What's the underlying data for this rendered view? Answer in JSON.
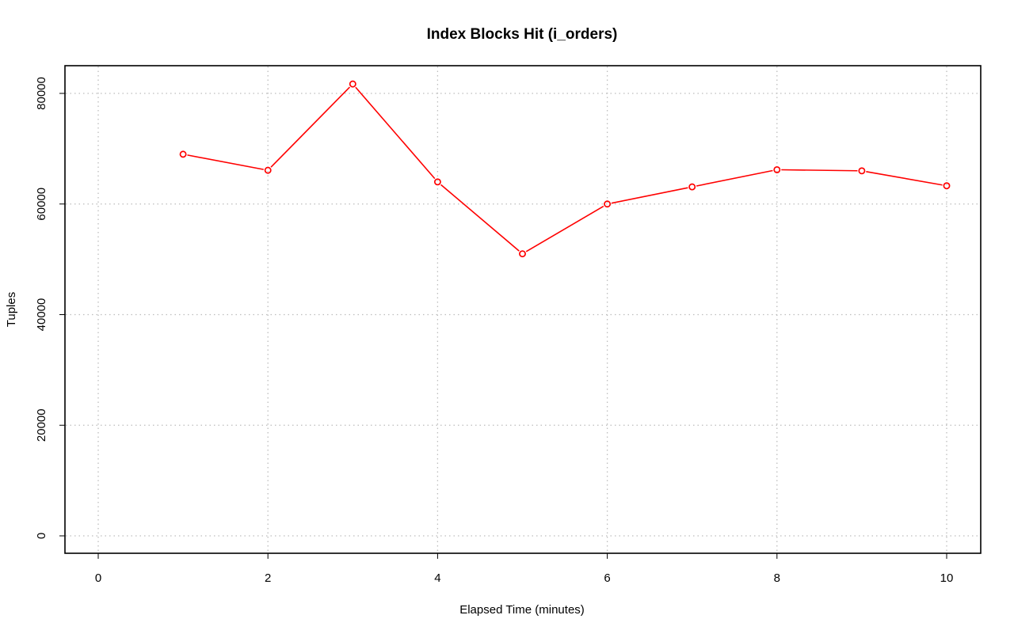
{
  "chart_data": {
    "type": "line",
    "title": "Index Blocks Hit (i_orders)",
    "xlabel": "Elapsed Time (minutes)",
    "ylabel": "Tuples",
    "xlim": [
      0,
      10
    ],
    "ylim": [
      0,
      80000
    ],
    "x_ticks": [
      0,
      2,
      4,
      6,
      8,
      10
    ],
    "y_ticks": [
      0,
      20000,
      40000,
      60000,
      80000
    ],
    "grid": true,
    "legend": "none",
    "series": [
      {
        "color": "#ff0000",
        "marker": "open-circle",
        "x": [
          1,
          2,
          3,
          4,
          5,
          6,
          7,
          8,
          9,
          10
        ],
        "y": [
          69000,
          66100,
          81700,
          64000,
          51000,
          60000,
          63100,
          66200,
          66000,
          63300
        ]
      }
    ]
  }
}
